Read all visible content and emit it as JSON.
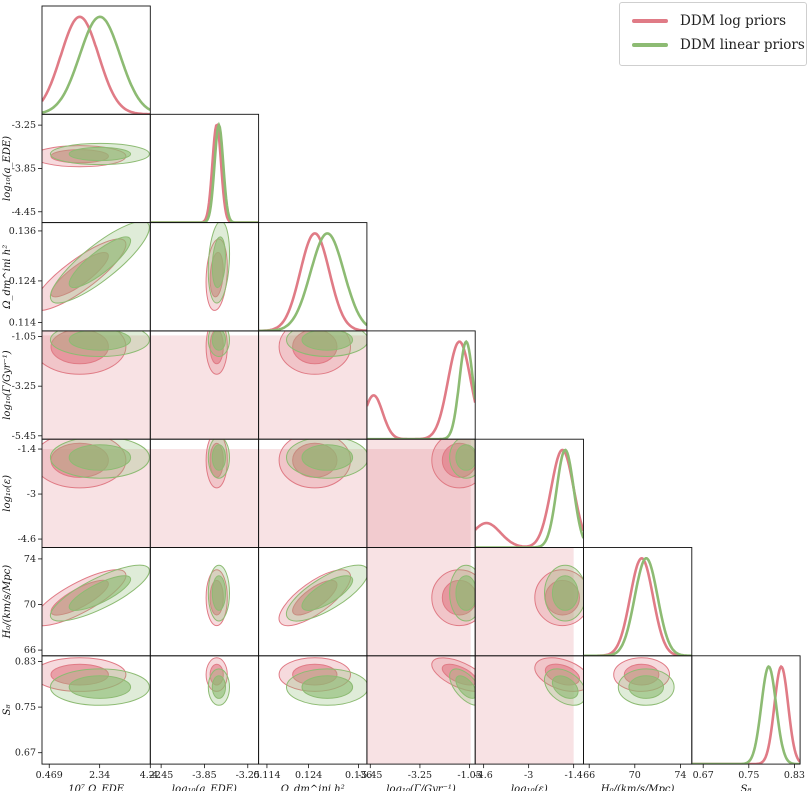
{
  "legend": {
    "entries": [
      {
        "label": "DDM log priors",
        "color": "#e07b86"
      },
      {
        "label": "DDM linear priors",
        "color": "#8dbb73"
      }
    ]
  },
  "chart_data": {
    "type": "corner",
    "parameters": [
      {
        "name": "omega_ede",
        "label": "10⁷ Ω_EDE",
        "range": [
          0.2,
          4.22
        ],
        "ticks": [
          0.469,
          2.34,
          4.22
        ],
        "tick_labels": [
          "0.469",
          "2.34",
          "4.22"
        ]
      },
      {
        "name": "log10_a_ede",
        "label": "log₁₀(a_EDE)",
        "range": [
          -4.6,
          -3.1
        ],
        "ticks": [
          -4.45,
          -3.85,
          -3.25
        ],
        "tick_labels": [
          "-4.45",
          "-3.85",
          "-3.25"
        ]
      },
      {
        "name": "omega_dm_ini",
        "label": "Ω_dm^ini h²",
        "range": [
          0.112,
          0.138
        ],
        "ticks": [
          0.114,
          0.124,
          0.136
        ],
        "tick_labels": [
          "0.114",
          "0.124",
          "0.136"
        ]
      },
      {
        "name": "log10_gamma",
        "label": "log₁₀(Γ/Gyr⁻¹)",
        "range": [
          -5.6,
          -0.8
        ],
        "ticks": [
          -5.45,
          -3.25,
          -1.05
        ],
        "tick_labels": [
          "-5.45",
          "-3.25",
          "-1.05"
        ]
      },
      {
        "name": "log10_epsilon",
        "label": "log₁₀(ε)",
        "range": [
          -4.9,
          -1.05
        ],
        "ticks": [
          -4.6,
          -3,
          -1.4
        ],
        "tick_labels": [
          "-4.6",
          "-3",
          "-1.4"
        ]
      },
      {
        "name": "H0",
        "label": "H₀/(km/s/Mpc)",
        "range": [
          65.5,
          75
        ],
        "ticks": [
          66,
          70,
          74
        ],
        "tick_labels": [
          "66",
          "70",
          "74"
        ]
      },
      {
        "name": "S8",
        "label": "S₈",
        "range": [
          0.65,
          0.84
        ],
        "ticks": [
          0.67,
          0.75,
          0.83
        ],
        "tick_labels": [
          "0.67",
          "0.75",
          "0.83"
        ]
      }
    ],
    "series": [
      {
        "name": "DDM log priors",
        "color": "#e07b86",
        "means": [
          1.6,
          -3.68,
          0.1255,
          -1.5,
          -1.8,
          70.6,
          0.807
        ],
        "sigmas": [
          0.7,
          0.06,
          0.0035,
          0.5,
          0.4,
          1.0,
          0.012
        ],
        "low_tail": [
          null,
          null,
          null,
          {
            "mean": -5.3,
            "sigma": 0.4,
            "weight": 0.45
          },
          {
            "mean": -4.5,
            "sigma": 0.5,
            "weight": 0.25
          },
          null,
          null
        ]
      },
      {
        "name": "DDM linear priors",
        "color": "#8dbb73",
        "means": [
          2.35,
          -3.65,
          0.1285,
          -1.2,
          -1.7,
          71.0,
          0.785
        ],
        "sigmas": [
          0.75,
          0.06,
          0.004,
          0.3,
          0.3,
          1.0,
          0.013
        ],
        "low_tail": [
          null,
          null,
          null,
          null,
          null,
          null,
          null
        ]
      }
    ],
    "correlations": {
      "omega_ede|omega_dm_ini": 0.85,
      "omega_ede|H0": 0.8,
      "omega_dm_ini|H0": 0.75,
      "log10_a_ede|omega_dm_ini": 0.2,
      "log10_gamma|S8": -0.6,
      "log10_epsilon|S8": -0.4
    }
  }
}
